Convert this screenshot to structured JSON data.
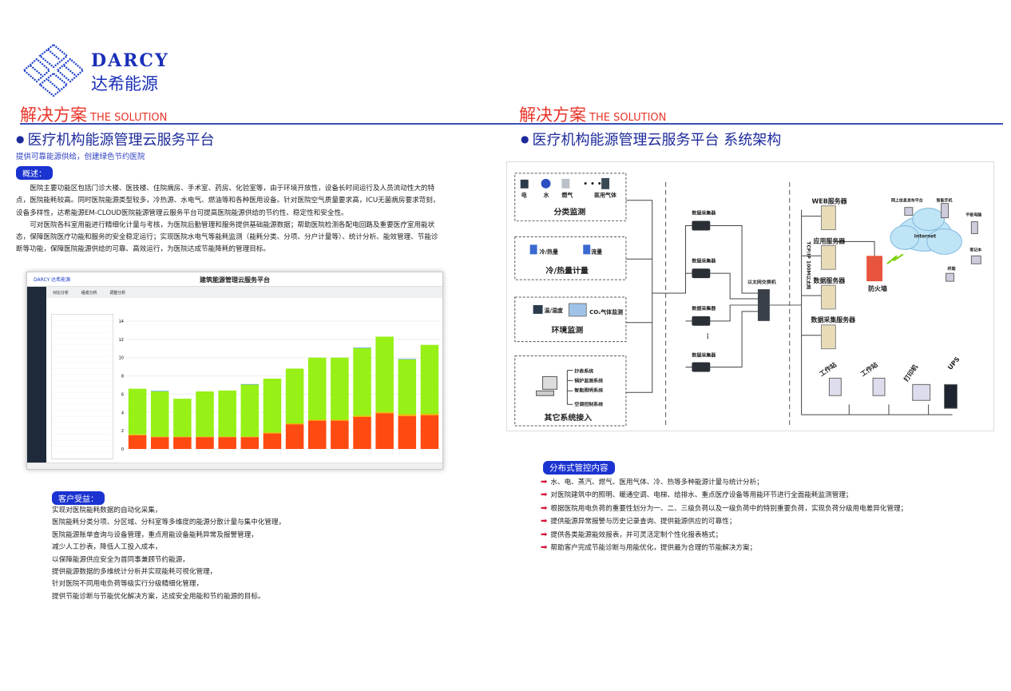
{
  "logo": {
    "en": "DARCY",
    "cn": "达希能源"
  },
  "left": {
    "section_cn": "解决方案",
    "section_en": "THE SOLUTION",
    "title": "医疗机构能源管理云服务平台",
    "subtitle": "提供可靠能源供给，创建绿色节约医院",
    "overview_label": "概述：",
    "overview": [
      "医院主要功能区包括门诊大楼、医技楼、住院病房、手术室、药房、化验室等，由于环境开放性，设备长时间运行及人员流动性大的特点，医院能耗较高。同时医院能源类型较多，冷热源、水电气、燃油等和各种医用设备。针对医院空气质量要求高，ICU无菌病房要求苛刻，设备多样性，达希能源EM-CLOUD医院能源管理云服务平台可提高医院能源供给的节约性、稳定性和安全性。",
      "可对医院各科室用能进行精细化计量与考核，为医院后勤管理和服务提供基础能源数据；帮助医院检测各配电回路及重要医疗室用能状态，保障医院医疗功能和服务的安全稳定运行；实现医院水电气等能耗监测（能耗分类、分项、分户计量等）、统计分析、能效管理、节能诊断等功能，保障医院能源供给的可靠、高效运行，为医院达成节能降耗的管理目标。"
    ],
    "benefits_label": "客户受益：",
    "benefits": [
      "实现对医院能耗数据的自动化采集，",
      "医院能耗分类分项、分区域、分科室等多维度的能源分散计量与集中化管理，",
      "医院能源账单查询与设备管理，重点用能设备能耗异常及报警管理，",
      "减少人工抄表，降低人工投入成本，",
      "以保障能源供应安全为首同事兼顾节约能源，",
      "提供能源数据的多维统计分析并实现能耗可视化管理，",
      "针对医院不同用电负荷等级实行分级精细化管理，",
      "提供节能诊断与节能优化解决方案，达成安全用能和节约能源的目标。"
    ]
  },
  "app_shot": {
    "title": "建筑能源管理云服务平台",
    "brand": "DARCY 达希能源",
    "tabs": [
      "对比分析",
      "组成分析",
      "调整分析"
    ],
    "chart_data": {
      "type": "bar",
      "stacked": true,
      "ylim": [
        0,
        14
      ],
      "yticks": [
        0,
        2,
        4,
        6,
        8,
        10,
        12,
        14
      ],
      "series_colors": [
        "#ff4a12",
        "#f2b500",
        "#97f016",
        "#3a8fe0"
      ],
      "series": [
        {
          "values": [
            1.5,
            1.3,
            1.3,
            1.3,
            1.3,
            1.3,
            1.7,
            2.7,
            3.1,
            3.1,
            3.5,
            3.9,
            3.6,
            3.7
          ]
        },
        {
          "values": [
            0.1,
            0.05,
            0.05,
            0.05,
            0.05,
            0.05,
            0.1,
            0.1,
            0.1,
            0.1,
            0.15,
            0.15,
            0.2,
            0.15
          ]
        },
        {
          "values": [
            5.0,
            4.95,
            4.15,
            4.95,
            5.05,
            5.7,
            5.9,
            6.0,
            6.8,
            6.8,
            7.4,
            8.25,
            6.0,
            7.55
          ]
        },
        {
          "values": [
            0,
            0.05,
            0,
            0,
            0,
            0.05,
            0,
            0,
            0,
            0,
            0.05,
            0,
            0.05,
            0
          ]
        }
      ]
    }
  },
  "right": {
    "section_cn": "解决方案",
    "section_en": "THE SOLUTION",
    "title": "医疗机构能源管理云服务平台 系统架构",
    "diagram": {
      "box1": {
        "items": [
          "电",
          "水",
          "燃气",
          "医用气体"
        ],
        "title": "分类监测"
      },
      "box2": {
        "items": [
          "冷/热量",
          "流量"
        ],
        "title": "冷/热量计量"
      },
      "box3": {
        "items": [
          "温/湿度",
          "CO₂气体监测"
        ],
        "title": "环境监测"
      },
      "box4": {
        "items": [
          "抄表系统",
          "锅炉监测系统",
          "智能照明系统",
          "空调控制系统"
        ],
        "title": "其它系统接入"
      },
      "collector": "数据采集器",
      "switch": "以太网交换机",
      "bus": "TCP/IP 100M以太网",
      "servers": [
        "WEB服务器",
        "应用服务器",
        "数据服务器",
        "数据采集服务器"
      ],
      "firewall": "防火墙",
      "internet": "Internet",
      "clients": [
        "网上信息发布平台",
        "智能手机",
        "平板电脑",
        "笔记本",
        "终端"
      ],
      "devices": [
        "工作站",
        "工作站",
        "打印机",
        "UPS"
      ]
    },
    "control_label": "分布式管控内容",
    "control": [
      "水、电、蒸汽、燃气、医用气体、冷、热等多种能源计量与统计分析；",
      "对医院建筑中的照明、暖通空调、电梯、给排水、重点医疗设备等用能环节进行全面能耗监测管理；",
      "根据医院用电负荷的重要性划分为一、二、三级负荷以及一级负荷中的特别重要负荷，实现负荷分级用电差异化管理；",
      "提供能源异常报警与历史记录查询、提供能源供应的可靠性；",
      "提供各类能源能效报表，并可灵活定制个性化报表格式；",
      "帮助客户完成节能诊断与用能优化，提供最为合理的节能解决方案；"
    ]
  }
}
